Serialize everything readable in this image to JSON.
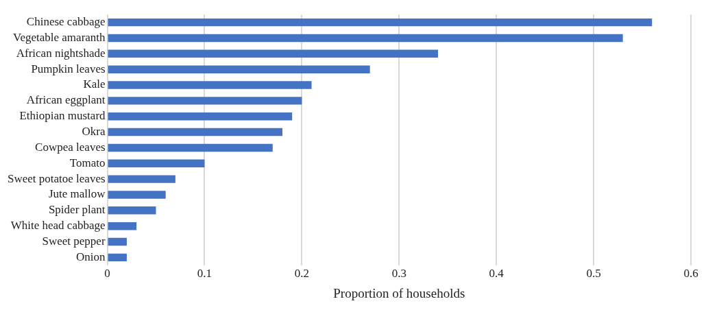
{
  "chart_data": {
    "type": "bar",
    "orientation": "horizontal",
    "xlabel": "Proportion of households",
    "categories": [
      "Chinese cabbage",
      "Vegetable amaranth",
      "African nightshade",
      "Pumpkin leaves",
      "Kale",
      "African eggplant",
      "Ethiopian mustard",
      "Okra",
      "Cowpea leaves",
      "Tomato",
      "Sweet potatoe leaves",
      "Jute mallow",
      "Spider plant",
      "White head cabbage",
      "Sweet pepper",
      "Onion"
    ],
    "values": [
      0.56,
      0.53,
      0.34,
      0.27,
      0.21,
      0.2,
      0.19,
      0.18,
      0.17,
      0.1,
      0.07,
      0.06,
      0.05,
      0.03,
      0.02,
      0.02
    ],
    "color": "#4472c4",
    "xlim": [
      0,
      0.6
    ],
    "xticks": [
      0,
      0.1,
      0.2,
      0.3,
      0.4,
      0.5,
      0.6
    ],
    "grid": "x"
  }
}
